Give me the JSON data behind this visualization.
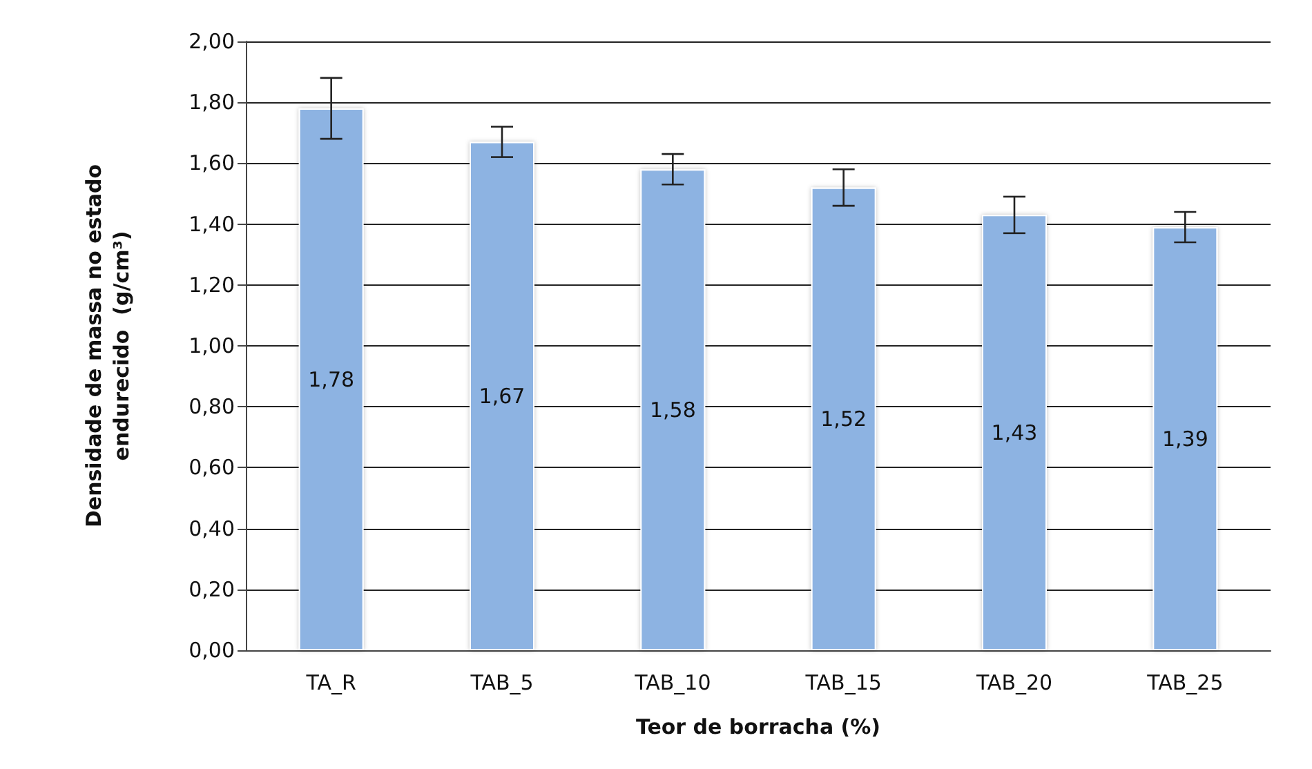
{
  "chart_data": {
    "type": "bar",
    "xlabel": "Teor de borracha (%)",
    "ylabel": "Densidade de massa no estado\nendurecido  (g/cm³)",
    "categories": [
      "TA_R",
      "TAB_5",
      "TAB_10",
      "TAB_15",
      "TAB_20",
      "TAB_25"
    ],
    "values": [
      1.78,
      1.67,
      1.58,
      1.52,
      1.43,
      1.39
    ],
    "value_labels": [
      "1,78",
      "1,67",
      "1,58",
      "1,52",
      "1,43",
      "1,39"
    ],
    "errors": [
      0.1,
      0.05,
      0.05,
      0.06,
      0.06,
      0.05
    ],
    "color": "#8db3e2",
    "ylim": [
      0,
      2
    ],
    "yticks": [
      {
        "value": 0,
        "label": "0,00"
      },
      {
        "value": 0.2,
        "label": "0,20"
      },
      {
        "value": 0.4,
        "label": "0,40"
      },
      {
        "value": 0.6,
        "label": "0,60"
      },
      {
        "value": 0.8,
        "label": "0,80"
      },
      {
        "value": 1,
        "label": "1,00"
      },
      {
        "value": 1.2,
        "label": "1,20"
      },
      {
        "value": 1.4,
        "label": "1,40"
      },
      {
        "value": 1.6,
        "label": "1,60"
      },
      {
        "value": 1.8,
        "label": "1,80"
      },
      {
        "value": 2,
        "label": "2,00"
      }
    ],
    "grid": "y"
  }
}
